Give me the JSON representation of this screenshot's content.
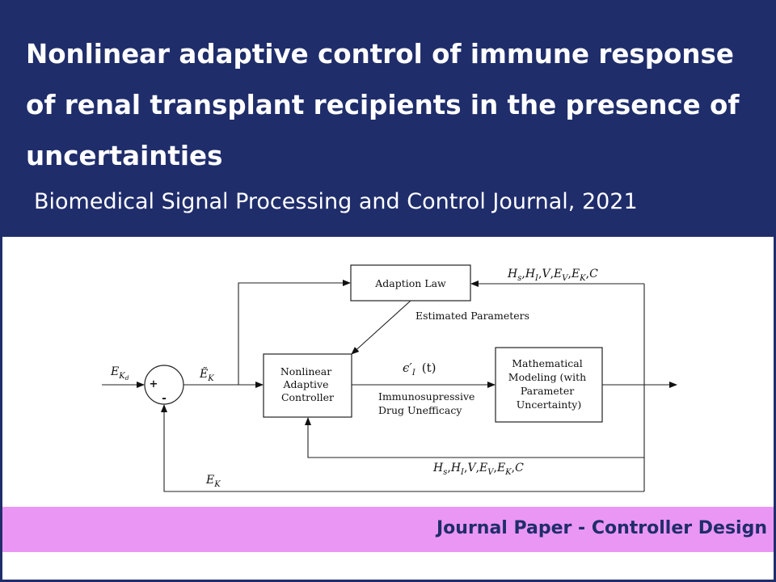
{
  "header": {
    "title": "Nonlinear adaptive control of immune response of renal transplant recipients in the presence of uncertainties",
    "subtitle": "Biomedical Signal Processing and Control Journal, 2021"
  },
  "diagram": {
    "blocks": {
      "adaption_law": "Adaption Law",
      "controller": [
        "Nonlinear",
        "Adaptive",
        "Controller"
      ],
      "model": [
        "Mathematical",
        "Modeling (with",
        "Parameter",
        "Uncertainty)"
      ]
    },
    "summing_junction": {
      "plus": "+",
      "minus": "-"
    },
    "labels": {
      "reference_signal": "E",
      "reference_subscript": "K",
      "reference_subsubscript": "d",
      "error_signal": "Ẽ",
      "error_subscript": "K",
      "estimated_parameters": "Estimated Parameters",
      "control_signal": "ϵ′",
      "control_subscript": "I",
      "control_argument": "(t)",
      "control_description": [
        "Immunosupressive",
        "Drug Unefficacy"
      ],
      "feedback_signal": "E",
      "feedback_subscript": "K"
    },
    "state_vector_top": [
      [
        "H",
        "s"
      ],
      [
        "H",
        "I"
      ],
      [
        "V",
        ""
      ],
      [
        "E",
        "V"
      ],
      [
        "E",
        "K"
      ],
      [
        "C",
        ""
      ]
    ],
    "state_vector_bottom": [
      [
        "H",
        "s"
      ],
      [
        "H",
        "I"
      ],
      [
        "V",
        ""
      ],
      [
        "E",
        "V"
      ],
      [
        "E",
        "K"
      ],
      [
        "C",
        ""
      ]
    ]
  },
  "footer": {
    "banner_text": "Journal Paper - Controller Design"
  }
}
